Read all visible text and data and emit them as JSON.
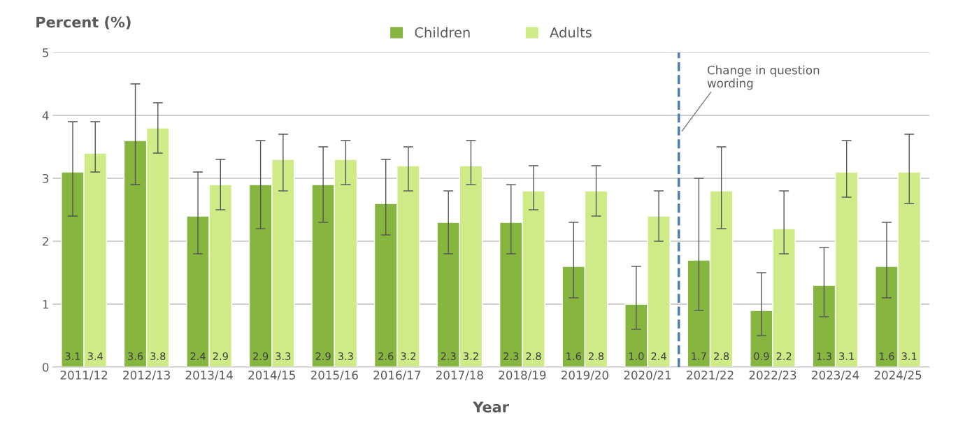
{
  "chart_data": {
    "type": "bar",
    "ylabel": "Percent (%)",
    "xlabel": "Year",
    "categories": [
      "2011/12",
      "2012/13",
      "2013/14",
      "2014/15",
      "2015/16",
      "2016/17",
      "2017/18",
      "2018/19",
      "2019/20",
      "2020/21",
      "2021/22",
      "2022/23",
      "2023/24",
      "2024/25"
    ],
    "series": [
      {
        "name": "Children",
        "color": "#86b540",
        "values": [
          3.1,
          3.6,
          2.4,
          2.9,
          2.9,
          2.6,
          2.3,
          2.3,
          1.6,
          1.0,
          1.7,
          0.9,
          1.3,
          1.6
        ],
        "errors": [
          [
            2.4,
            3.9
          ],
          [
            2.9,
            4.5
          ],
          [
            1.8,
            3.1
          ],
          [
            2.2,
            3.6
          ],
          [
            2.3,
            3.5
          ],
          [
            2.1,
            3.3
          ],
          [
            1.8,
            2.8
          ],
          [
            1.8,
            2.9
          ],
          [
            1.1,
            2.3
          ],
          [
            0.6,
            1.6
          ],
          [
            0.9,
            3.0
          ],
          [
            0.5,
            1.5
          ],
          [
            0.8,
            1.9
          ],
          [
            1.1,
            2.3
          ]
        ],
        "value_labels": [
          "3.1",
          "3.6",
          "2.4",
          "2.9",
          "2.9",
          "2.6",
          "2.3",
          "2.3",
          "1.6",
          "1.0",
          "1.7",
          "0.9",
          "1.3",
          "1.6"
        ]
      },
      {
        "name": "Adults",
        "color": "#cfeb88",
        "values": [
          3.4,
          3.8,
          2.9,
          3.3,
          3.3,
          3.2,
          3.2,
          2.8,
          2.8,
          2.4,
          2.8,
          2.2,
          3.1,
          3.1
        ],
        "errors": [
          [
            3.1,
            3.9
          ],
          [
            3.4,
            4.2
          ],
          [
            2.5,
            3.3
          ],
          [
            2.8,
            3.7
          ],
          [
            2.9,
            3.6
          ],
          [
            2.8,
            3.5
          ],
          [
            2.9,
            3.6
          ],
          [
            2.5,
            3.2
          ],
          [
            2.4,
            3.2
          ],
          [
            2.0,
            2.8
          ],
          [
            2.2,
            3.5
          ],
          [
            1.8,
            2.8
          ],
          [
            2.7,
            3.6
          ],
          [
            2.6,
            3.7
          ]
        ],
        "value_labels": [
          "3.4",
          "3.8",
          "2.9",
          "3.3",
          "3.3",
          "3.2",
          "3.2",
          "2.8",
          "2.8",
          "2.4",
          "2.8",
          "2.2",
          "3.1",
          "3.1"
        ]
      }
    ],
    "ylim": [
      0,
      5
    ],
    "yticks": [
      0,
      1,
      2,
      3,
      4,
      5
    ],
    "grid": "y",
    "legend": "top",
    "ref_lines": [
      {
        "axis": "x",
        "value": "2021/22",
        "label": "Change in question\nwording",
        "color": "#4a7ebb",
        "line_style": "dashed"
      }
    ]
  }
}
